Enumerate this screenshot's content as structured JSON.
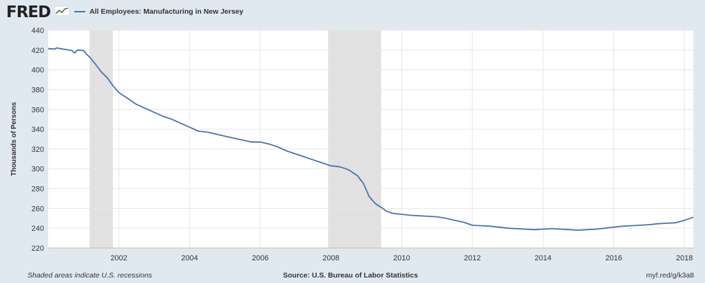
{
  "header": {
    "logo_text": "FRED",
    "logo_icon": "line-chart-icon"
  },
  "footer": {
    "recession_note": "Shaded areas indicate U.S. recessions",
    "source": "Source: U.S. Bureau of Labor Statistics",
    "short_url": "myf.red/g/k3a8"
  },
  "colors": {
    "series": "#4572a7",
    "recession": "#e1e1e1",
    "background": "#e1e9f0",
    "plot_bg": "#ffffff",
    "grid": "#e6e6e6"
  },
  "chart_data": {
    "type": "line",
    "title": "",
    "xlabel": "",
    "ylabel": "Thousands of Persons",
    "ylim": [
      220,
      440
    ],
    "yticks": [
      220,
      240,
      260,
      280,
      300,
      320,
      340,
      360,
      380,
      400,
      420,
      440
    ],
    "xlim": [
      2000.0,
      2018.25
    ],
    "xticks": [
      "2002",
      "2004",
      "2006",
      "2008",
      "2010",
      "2012",
      "2014",
      "2016",
      "2018"
    ],
    "grid": true,
    "legend_position": "top-left",
    "recessions": [
      [
        2001.17,
        2001.83
      ],
      [
        2007.92,
        2009.42
      ]
    ],
    "series": [
      {
        "name": "All Employees: Manufacturing in New Jersey",
        "x": [
          2000.0,
          2000.17,
          2000.25,
          2000.5,
          2000.67,
          2000.75,
          2000.83,
          2001.0,
          2001.08,
          2001.17,
          2001.33,
          2001.5,
          2001.67,
          2001.83,
          2002.0,
          2002.25,
          2002.5,
          2002.75,
          2003.0,
          2003.25,
          2003.5,
          2003.75,
          2004.0,
          2004.25,
          2004.5,
          2004.75,
          2005.0,
          2005.25,
          2005.5,
          2005.75,
          2006.0,
          2006.25,
          2006.5,
          2006.75,
          2007.0,
          2007.25,
          2007.5,
          2007.75,
          2008.0,
          2008.25,
          2008.5,
          2008.75,
          2008.92,
          2009.08,
          2009.25,
          2009.42,
          2009.58,
          2009.75,
          2010.0,
          2010.25,
          2010.5,
          2010.75,
          2011.0,
          2011.25,
          2011.5,
          2011.75,
          2012.0,
          2012.25,
          2012.5,
          2012.75,
          2013.0,
          2013.25,
          2013.5,
          2013.75,
          2014.0,
          2014.25,
          2014.5,
          2014.75,
          2015.0,
          2015.25,
          2015.5,
          2015.75,
          2016.0,
          2016.25,
          2016.5,
          2016.75,
          2017.0,
          2017.25,
          2017.5,
          2017.75,
          2018.0,
          2018.25
        ],
        "y": [
          421.5,
          421,
          422,
          420.5,
          419.5,
          417,
          420,
          419.5,
          416,
          413,
          406,
          398,
          392,
          384,
          377,
          371,
          365,
          361,
          357,
          353,
          350,
          346,
          342,
          338,
          337,
          335,
          333,
          331,
          329,
          327,
          327,
          325,
          322,
          318,
          315,
          312,
          309,
          306,
          303,
          302,
          299,
          293,
          285,
          272,
          265,
          261,
          257,
          255,
          254,
          253,
          252.5,
          252,
          251.5,
          250,
          248,
          246,
          243,
          242.5,
          242,
          241,
          240,
          239.5,
          239,
          238.5,
          239,
          239.5,
          239,
          238.5,
          238,
          238.5,
          239,
          240,
          241,
          242,
          242.5,
          243,
          243.5,
          244.5,
          245,
          245.5,
          248,
          251
        ]
      }
    ]
  }
}
